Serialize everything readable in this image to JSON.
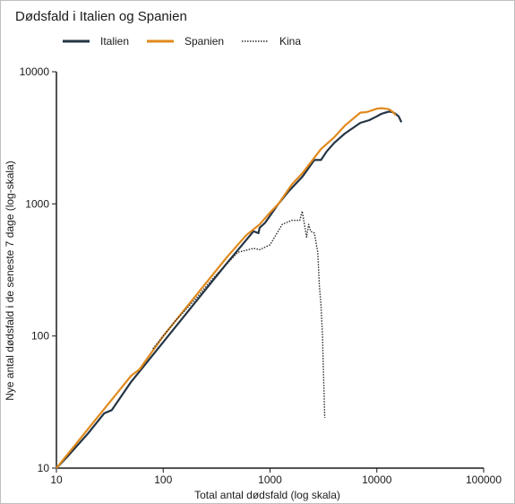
{
  "chart_data": {
    "type": "line",
    "title": "Dødsfald i Italien og Spanien",
    "xlabel": "Total  antal dødsfald  (log skala)",
    "ylabel": "Nye antal dødsfald  i de seneste  7 dage  (log-skala)",
    "xscale": "log",
    "yscale": "log",
    "xlim": [
      10,
      100000
    ],
    "ylim": [
      10,
      10000
    ],
    "xticks": [
      "10",
      "100",
      "1000",
      "10000",
      "100000"
    ],
    "yticks": [
      "10",
      "100",
      "1000",
      "10000"
    ],
    "grid": false,
    "legend": "top-left",
    "series": [
      {
        "name": "Italien",
        "color": "#243444",
        "style": "solid",
        "x": [
          10,
          13,
          20,
          28,
          33,
          50,
          100,
          200,
          400,
          700,
          780,
          800,
          900,
          1200,
          1500,
          2000,
          2600,
          3000,
          3400,
          4000,
          5000,
          7000,
          8500,
          10000,
          11000,
          12000,
          13000,
          14000,
          15000,
          16000,
          17000
        ],
        "y": [
          10,
          12.5,
          18.5,
          26,
          27.5,
          45,
          90,
          180,
          360,
          620,
          600,
          660,
          720,
          1000,
          1250,
          1600,
          2150,
          2150,
          2500,
          2900,
          3400,
          4100,
          4300,
          4600,
          4800,
          4900,
          5000,
          4950,
          4800,
          4600,
          4150
        ]
      },
      {
        "name": "Spanien",
        "color": "#e08a1e",
        "style": "solid",
        "x": [
          10,
          15,
          20,
          30,
          50,
          55,
          60,
          100,
          200,
          400,
          600,
          800,
          1000,
          1200,
          1600,
          2000,
          3000,
          4000,
          5000,
          7000,
          8000,
          9000,
          10000,
          11000,
          12000,
          13000,
          14000,
          15000
        ],
        "y": [
          10,
          15,
          20,
          30,
          50,
          53,
          56,
          100,
          200,
          400,
          580,
          700,
          860,
          1000,
          1400,
          1700,
          2600,
          3200,
          3900,
          4900,
          4950,
          5100,
          5250,
          5300,
          5250,
          5200,
          5000,
          4700
        ]
      },
      {
        "name": "Kina",
        "color": "#2b2b2b",
        "style": "dotted",
        "x": [
          80,
          130,
          200,
          300,
          500,
          700,
          800,
          1000,
          1300,
          1600,
          1900,
          2000,
          2100,
          2200,
          2300,
          2400,
          2600,
          2800,
          2900,
          3000,
          3100,
          3150,
          3200,
          3230,
          3250,
          3260
        ],
        "y": [
          80,
          130,
          190,
          280,
          430,
          460,
          450,
          490,
          700,
          750,
          750,
          880,
          700,
          560,
          700,
          620,
          600,
          430,
          240,
          170,
          100,
          60,
          40,
          30,
          25,
          24
        ]
      }
    ]
  }
}
